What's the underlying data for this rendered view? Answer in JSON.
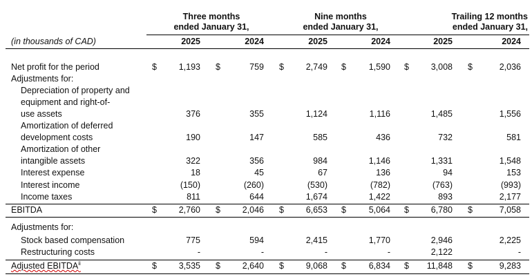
{
  "header": {
    "groups": [
      {
        "line1": "Three months",
        "line2": "ended January 31,"
      },
      {
        "line1": "Nine months",
        "line2": "ended January 31,"
      },
      {
        "line1": "Trailing 12 months",
        "line2": "ended January 31,"
      }
    ],
    "unit_label": "(in thousands of CAD)",
    "years": [
      "2025",
      "2024",
      "2025",
      "2024",
      "2025",
      "2024"
    ]
  },
  "currency_symbol": "$",
  "rows": [
    {
      "label": [
        "Net profit for the period"
      ],
      "values": [
        "1,193",
        "759",
        "2,749",
        "1,590",
        "3,008",
        "2,036"
      ],
      "dollar": true
    },
    {
      "label": [
        "Adjustments for:"
      ],
      "values": []
    },
    {
      "label": [
        "Depreciation of property and",
        "equipment and right-of-",
        "use assets"
      ],
      "indent": true,
      "values": [
        "376",
        "355",
        "1,124",
        "1,116",
        "1,485",
        "1,556"
      ]
    },
    {
      "label": [
        "Amortization of deferred",
        "development costs"
      ],
      "indent": true,
      "values": [
        "190",
        "147",
        "585",
        "436",
        "732",
        "581"
      ]
    },
    {
      "label": [
        "Amortization of other",
        "intangible assets"
      ],
      "indent": true,
      "values": [
        "322",
        "356",
        "984",
        "1,146",
        "1,331",
        "1,548"
      ]
    },
    {
      "label": [
        "Interest expense"
      ],
      "indent": true,
      "values": [
        "18",
        "45",
        "67",
        "136",
        "94",
        "153"
      ]
    },
    {
      "label": [
        "Interest income"
      ],
      "indent": true,
      "values": [
        "(150)",
        "(260)",
        "(530)",
        "(782)",
        "(763)",
        "(993)"
      ]
    },
    {
      "label": [
        "Income taxes"
      ],
      "indent": true,
      "values": [
        "811",
        "644",
        "1,674",
        "1,422",
        "893",
        "2,177"
      ]
    },
    {
      "label": [
        "EBITDA"
      ],
      "values": [
        "2,760",
        "2,046",
        "6,653",
        "5,064",
        "6,780",
        "7,058"
      ],
      "dollar": true
    },
    {
      "label": [
        "Adjustments for:"
      ],
      "values": []
    },
    {
      "label": [
        "Stock based compensation"
      ],
      "indent": true,
      "values": [
        "775",
        "594",
        "2,415",
        "1,770",
        "2,946",
        "2,225"
      ]
    },
    {
      "label": [
        "Restructuring costs"
      ],
      "indent": true,
      "values": [
        "-",
        "-",
        "-",
        "-",
        "2,122",
        "-"
      ]
    },
    {
      "label": [
        "Adjusted EBITDA"
      ],
      "superscript": "ii",
      "values": [
        "3,535",
        "2,640",
        "9,068",
        "6,834",
        "11,848",
        "9,283"
      ],
      "dollar": true
    }
  ]
}
